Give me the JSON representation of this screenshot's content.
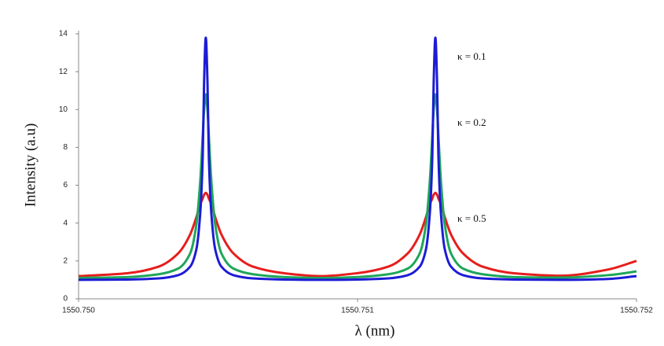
{
  "chart_data": {
    "type": "line",
    "y_label": "Intensity (a.u)",
    "x_label": "λ (nm)",
    "xlim": [
      1550.75,
      1550.752
    ],
    "xticks": [
      {
        "value": 1550.75,
        "label": "1550.750"
      },
      1550.751,
      {
        "value": 1550.752,
        "label": "1550.752"
      }
    ],
    "ylim": [
      0,
      14
    ],
    "yticks": [
      0,
      2,
      4,
      6,
      8,
      10,
      12,
      14
    ],
    "x": [
      1550.75,
      1550.750174,
      1550.750287,
      1550.750357,
      1550.7504,
      1550.750422,
      1550.750436,
      1550.750445,
      1550.75045,
      1550.750456,
      1550.750462,
      1550.750467,
      1550.750476,
      1550.75049,
      1550.750512,
      1550.750555,
      1550.750625,
      1550.750738,
      1550.750867,
      1550.750997,
      1550.75111,
      1550.75118,
      1550.751223,
      1550.751245,
      1550.751259,
      1550.751268,
      1550.751273,
      1550.751279,
      1550.751285,
      1550.75129,
      1550.751299,
      1550.751313,
      1550.751335,
      1550.751378,
      1550.751448,
      1550.751561,
      1550.75173,
      1550.751899,
      1550.752
    ],
    "series": [
      {
        "name": "κ = 0.1",
        "color": "#1c1cd6",
        "values": [
          1.0,
          1.02,
          1.08,
          1.25,
          1.7,
          2.6,
          4.5,
          7.5,
          11.5,
          13.8,
          11.5,
          7.5,
          4.5,
          2.6,
          1.7,
          1.25,
          1.08,
          1.02,
          1.0,
          1.02,
          1.08,
          1.25,
          1.7,
          2.6,
          4.5,
          7.5,
          11.5,
          13.8,
          11.5,
          7.5,
          4.5,
          2.6,
          1.7,
          1.25,
          1.08,
          1.02,
          1.0,
          1.05,
          1.2
        ]
      },
      {
        "name": "κ = 0.2",
        "color": "#1fa65a",
        "values": [
          1.1,
          1.15,
          1.3,
          1.6,
          2.4,
          3.9,
          6.2,
          8.6,
          10.0,
          10.8,
          10.0,
          8.6,
          6.2,
          3.9,
          2.4,
          1.6,
          1.3,
          1.15,
          1.1,
          1.15,
          1.3,
          1.6,
          2.4,
          3.9,
          6.2,
          8.6,
          10.0,
          10.8,
          10.0,
          8.6,
          6.2,
          3.9,
          2.4,
          1.6,
          1.3,
          1.15,
          1.12,
          1.25,
          1.45
        ]
      },
      {
        "name": "κ = 0.5",
        "color": "#e61e1c",
        "values": [
          1.2,
          1.35,
          1.7,
          2.4,
          3.4,
          4.3,
          5.0,
          5.3,
          5.5,
          5.6,
          5.5,
          5.3,
          5.0,
          4.3,
          3.4,
          2.4,
          1.7,
          1.35,
          1.2,
          1.35,
          1.7,
          2.4,
          3.4,
          4.3,
          5.0,
          5.3,
          5.5,
          5.6,
          5.5,
          5.3,
          5.0,
          4.3,
          3.4,
          2.4,
          1.7,
          1.35,
          1.22,
          1.55,
          2.0
        ]
      }
    ]
  }
}
